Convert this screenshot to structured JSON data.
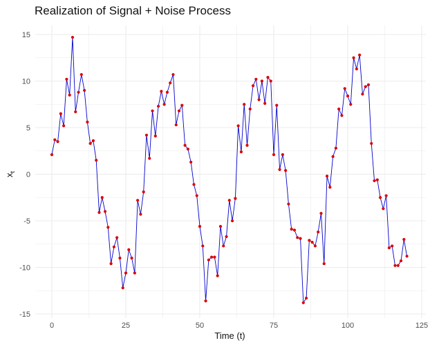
{
  "chart_data": {
    "type": "line",
    "title": "Realization of Signal + Noise Process",
    "xlabel": "Time (t)",
    "ylabel": "x",
    "ylabel_subscript": "t",
    "xlim": [
      0,
      125
    ],
    "ylim": [
      -15,
      15
    ],
    "x_ticks": [
      0,
      25,
      50,
      75,
      100,
      125
    ],
    "y_ticks": [
      -15,
      -10,
      -5,
      0,
      5,
      10,
      15
    ],
    "x_tick_labels": [
      "0",
      "25",
      "50",
      "75",
      "100",
      "125"
    ],
    "y_tick_labels": [
      "-15",
      "-10",
      "-5",
      "0",
      "5",
      "10",
      "15"
    ],
    "grid": true,
    "theme": "minimal",
    "line_color": "#0000cc",
    "point_color": "#dd0000",
    "grid_color": "#ebebeb",
    "x": [
      0,
      1,
      2,
      3,
      4,
      5,
      6,
      7,
      8,
      9,
      10,
      11,
      12,
      13,
      14,
      15,
      16,
      17,
      18,
      19,
      20,
      21,
      22,
      23,
      24,
      25,
      26,
      27,
      28,
      29,
      30,
      31,
      32,
      33,
      34,
      35,
      36,
      37,
      38,
      39,
      40,
      41,
      42,
      43,
      44,
      45,
      46,
      47,
      48,
      49,
      50,
      51,
      52,
      53,
      54,
      55,
      56,
      57,
      58,
      59,
      60,
      61,
      62,
      63,
      64,
      65,
      66,
      67,
      68,
      69,
      70,
      71,
      72,
      73,
      74,
      75,
      76,
      77,
      78,
      79,
      80,
      81,
      82,
      83,
      84,
      85,
      86,
      87,
      88,
      89,
      90,
      91,
      92,
      93,
      94,
      95,
      96,
      97,
      98,
      99,
      100,
      101,
      102,
      103,
      104,
      105,
      106,
      107,
      108,
      109,
      110,
      111,
      112,
      113,
      114,
      115,
      116,
      117,
      118,
      119,
      120
    ],
    "y": [
      2.1,
      3.7,
      3.5,
      6.5,
      5.2,
      10.2,
      8.5,
      14.7,
      6.7,
      8.8,
      10.7,
      9.0,
      5.6,
      3.3,
      3.6,
      1.5,
      -4.1,
      -2.5,
      -4.0,
      -5.7,
      -9.6,
      -7.8,
      -6.8,
      -9.0,
      -12.2,
      -10.6,
      -8.1,
      -9.0,
      -10.6,
      -2.8,
      -4.3,
      -1.9,
      4.2,
      1.7,
      6.8,
      4.1,
      7.3,
      8.9,
      7.5,
      8.8,
      9.8,
      10.7,
      5.3,
      6.8,
      7.4,
      3.1,
      2.7,
      1.3,
      -1.1,
      -2.3,
      -5.6,
      -7.7,
      -13.6,
      -9.2,
      -8.9,
      -8.9,
      -10.9,
      -5.6,
      -7.7,
      -6.7,
      -2.8,
      -5.0,
      -2.6,
      5.2,
      2.4,
      7.5,
      3.1,
      7.0,
      9.5,
      10.2,
      8.0,
      10.0,
      7.6,
      10.4,
      10.0,
      2.1,
      7.4,
      0.5,
      2.1,
      0.4,
      -3.2,
      -5.9,
      -6.0,
      -6.8,
      -6.9,
      -13.8,
      -13.3,
      -7.1,
      -7.3,
      -7.7,
      -6.2,
      -4.2,
      -9.6,
      -0.2,
      -1.4,
      1.9,
      2.8,
      7.0,
      6.3,
      9.2,
      8.4,
      7.5,
      12.5,
      11.3,
      12.8,
      8.6,
      9.4,
      9.6,
      3.3,
      -0.7,
      -0.6,
      -2.5,
      -3.7,
      -2.3,
      -7.9,
      -7.7,
      -9.8,
      -9.8,
      -9.3,
      -7.0,
      -8.8
    ]
  }
}
